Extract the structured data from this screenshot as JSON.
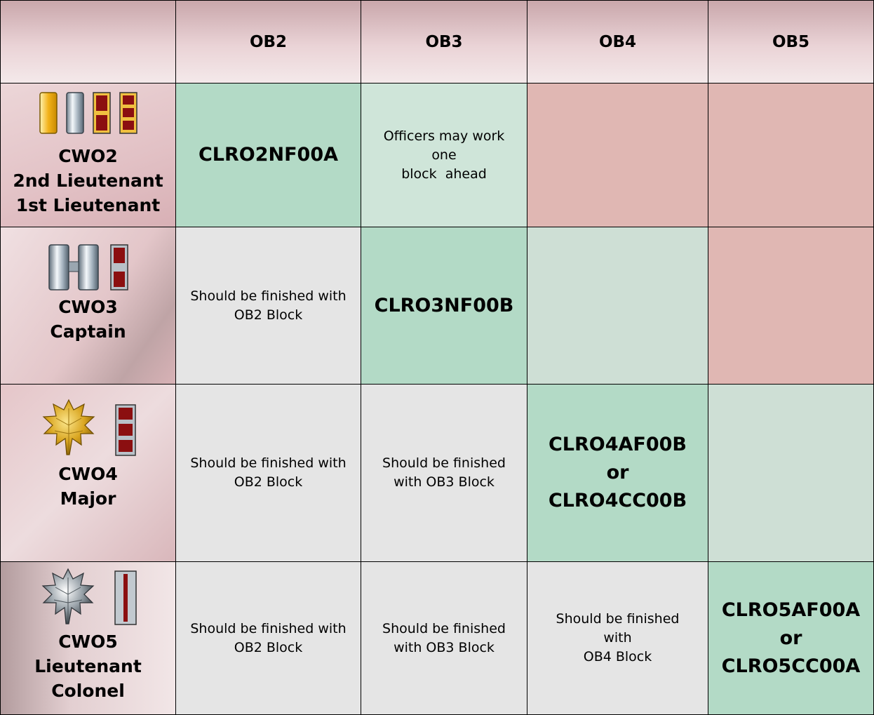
{
  "headers": [
    "",
    "OB2",
    "OB3",
    "OB4",
    "OB5"
  ],
  "rows": [
    {
      "rank_lines": [
        "CWO2",
        "2nd Lieutenant",
        "1st Lieutenant"
      ],
      "insignia": [
        "warrant-officer-1-gold-bar-icon",
        "cwo2-silver-bar-icon",
        "second-lieutenant-bar-icon",
        "first-lieutenant-bar-icon"
      ],
      "cells": [
        {
          "kind": "code",
          "lines": [
            "CLRO2NF00A"
          ],
          "color": "#b3dac6"
        },
        {
          "kind": "note",
          "lines": [
            "Officers may work one",
            "block  ahead"
          ],
          "color": "#cfe5d9"
        },
        {
          "kind": "empty",
          "lines": [],
          "color": "#e0b7b3"
        },
        {
          "kind": "empty",
          "lines": [],
          "color": "#e0b7b3"
        }
      ]
    },
    {
      "rank_lines": [
        "CWO3",
        "Captain"
      ],
      "insignia": [
        "captain-double-bar-icon",
        "cwo3-bar-icon"
      ],
      "cells": [
        {
          "kind": "note",
          "lines": [
            "Should be finished with",
            "OB2 Block"
          ],
          "color": "#e5e5e5"
        },
        {
          "kind": "code",
          "lines": [
            "CLRO3NF00B"
          ],
          "color": "#b3dac6"
        },
        {
          "kind": "empty",
          "lines": [],
          "color": "#cedfd5"
        },
        {
          "kind": "empty",
          "lines": [],
          "color": "#e0b7b3"
        }
      ]
    },
    {
      "rank_lines": [
        "CWO4",
        "Major"
      ],
      "insignia": [
        "gold-oak-leaf-icon",
        "cwo4-bar-icon"
      ],
      "cells": [
        {
          "kind": "note",
          "lines": [
            "Should be finished with",
            "OB2 Block"
          ],
          "color": "#e5e5e5"
        },
        {
          "kind": "note",
          "lines": [
            "Should be finished",
            "with OB3 Block"
          ],
          "color": "#e5e5e5"
        },
        {
          "kind": "code",
          "lines": [
            "CLRO4AF00B",
            "or",
            "CLRO4CC00B"
          ],
          "color": "#b3dac6"
        },
        {
          "kind": "empty",
          "lines": [],
          "color": "#cedfd5"
        }
      ]
    },
    {
      "rank_lines": [
        "CWO5",
        "Lieutenant",
        "Colonel"
      ],
      "insignia": [
        "silver-oak-leaf-icon",
        "cwo5-bar-icon"
      ],
      "cells": [
        {
          "kind": "note",
          "lines": [
            "Should be finished with",
            "OB2 Block"
          ],
          "color": "#e5e5e5"
        },
        {
          "kind": "note",
          "lines": [
            "Should be finished",
            "with OB3 Block"
          ],
          "color": "#e5e5e5"
        },
        {
          "kind": "note",
          "lines": [
            "Should be finished with",
            "OB4 Block"
          ],
          "color": "#e5e5e5"
        },
        {
          "kind": "code",
          "lines": [
            "CLRO5AF00A",
            "or",
            "CLRO5CC00A"
          ],
          "color": "#b3dac6"
        }
      ]
    }
  ]
}
